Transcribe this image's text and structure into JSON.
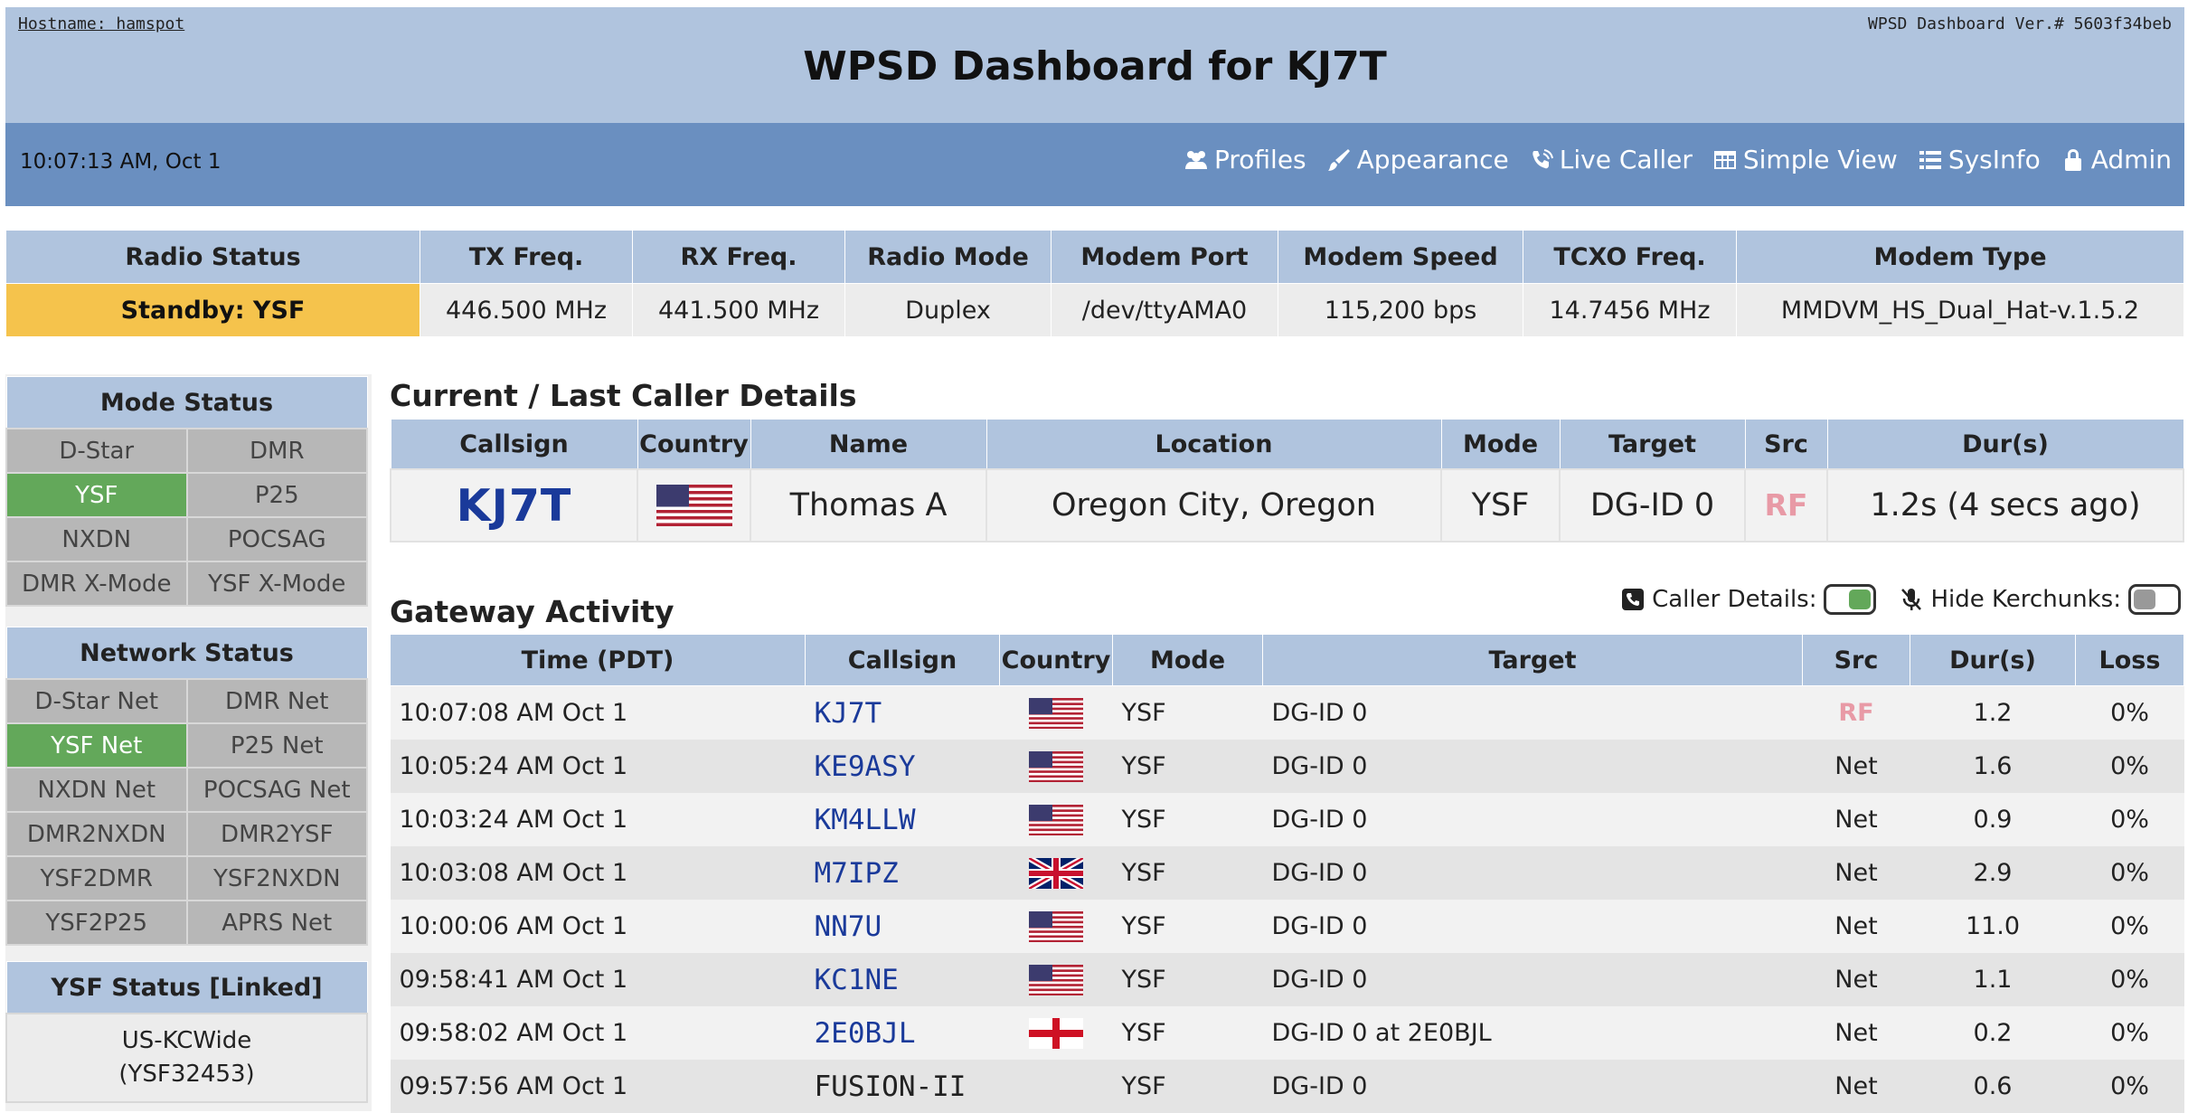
{
  "header": {
    "hostname": "Hostname: hamspot",
    "version": "WPSD Dashboard Ver.# 5603f34beb",
    "title": "WPSD Dashboard for KJ7T",
    "clock": "10:07:13 AM, Oct 1",
    "nav": [
      {
        "label": "Profiles",
        "icon": "users-icon"
      },
      {
        "label": "Appearance",
        "icon": "brush-icon"
      },
      {
        "label": "Live Caller",
        "icon": "phone-volume-icon"
      },
      {
        "label": "Simple View",
        "icon": "table-icon"
      },
      {
        "label": "SysInfo",
        "icon": "list-icon"
      },
      {
        "label": "Admin",
        "icon": "lock-icon"
      }
    ]
  },
  "radio": {
    "headers": [
      "Radio Status",
      "TX Freq.",
      "RX Freq.",
      "Radio Mode",
      "Modem Port",
      "Modem Speed",
      "TCXO Freq.",
      "Modem Type"
    ],
    "values": [
      "Standby: YSF",
      "446.500 MHz",
      "441.500 MHz",
      "Duplex",
      "/dev/ttyAMA0",
      "115,200 bps",
      "14.7456 MHz",
      "MMDVM_HS_Dual_Hat-v.1.5.2"
    ],
    "standby_color": "#f5c34c"
  },
  "mode_status": {
    "title": "Mode Status",
    "items": [
      "D-Star",
      "DMR",
      "YSF",
      "P25",
      "NXDN",
      "POCSAG",
      "DMR X-Mode",
      "YSF X-Mode"
    ],
    "active": "YSF"
  },
  "network_status": {
    "title": "Network Status",
    "items": [
      "D-Star Net",
      "DMR Net",
      "YSF Net",
      "P25 Net",
      "NXDN Net",
      "POCSAG Net",
      "DMR2NXDN",
      "DMR2YSF",
      "YSF2DMR",
      "YSF2NXDN",
      "YSF2P25",
      "APRS Net"
    ],
    "active": "YSF Net"
  },
  "ysf_status": {
    "title": "YSF Status [Linked]",
    "line1": "US-KCWide",
    "line2": "(YSF32453)"
  },
  "caller": {
    "section_title": "Current / Last Caller Details",
    "headers": [
      "Callsign",
      "Country",
      "Name",
      "Location",
      "Mode",
      "Target",
      "Src",
      "Dur(s)"
    ],
    "callsign": "KJ7T",
    "country_flag": "us-flag-icon",
    "name": "Thomas A",
    "location": "Oregon City, Oregon",
    "mode": "YSF",
    "target": "DG-ID 0",
    "src": "RF",
    "duration": "1.2s (4 secs ago)"
  },
  "gateway": {
    "section_title": "Gateway Activity",
    "caller_details_label": "Caller Details:",
    "caller_details_on": true,
    "hide_kerchunks_label": "Hide Kerchunks:",
    "hide_kerchunks_on": false,
    "headers": [
      "Time (PDT)",
      "Callsign",
      "Country",
      "Mode",
      "Target",
      "Src",
      "Dur(s)",
      "Loss"
    ],
    "rows": [
      {
        "time": "10:07:08 AM Oct 1",
        "callsign": "KJ7T",
        "flag": "us",
        "mode": "YSF",
        "target": "DG-ID 0",
        "src": "RF",
        "dur": "1.2",
        "loss": "0%"
      },
      {
        "time": "10:05:24 AM Oct 1",
        "callsign": "KE9ASY",
        "flag": "us",
        "mode": "YSF",
        "target": "DG-ID 0",
        "src": "Net",
        "dur": "1.6",
        "loss": "0%"
      },
      {
        "time": "10:03:24 AM Oct 1",
        "callsign": "KM4LLW",
        "flag": "us",
        "mode": "YSF",
        "target": "DG-ID 0",
        "src": "Net",
        "dur": "0.9",
        "loss": "0%"
      },
      {
        "time": "10:03:08 AM Oct 1",
        "callsign": "M7IPZ",
        "flag": "uk",
        "mode": "YSF",
        "target": "DG-ID 0",
        "src": "Net",
        "dur": "2.9",
        "loss": "0%"
      },
      {
        "time": "10:00:06 AM Oct 1",
        "callsign": "NN7U",
        "flag": "us",
        "mode": "YSF",
        "target": "DG-ID 0",
        "src": "Net",
        "dur": "11.0",
        "loss": "0%"
      },
      {
        "time": "09:58:41 AM Oct 1",
        "callsign": "KC1NE",
        "flag": "us",
        "mode": "YSF",
        "target": "DG-ID 0",
        "src": "Net",
        "dur": "1.1",
        "loss": "0%"
      },
      {
        "time": "09:58:02 AM Oct 1",
        "callsign": "2E0BJL",
        "flag": "england",
        "mode": "YSF",
        "target": "DG-ID 0 at 2E0BJL",
        "src": "Net",
        "dur": "0.2",
        "loss": "0%"
      },
      {
        "time": "09:57:56 AM Oct 1",
        "callsign": "FUSION-II",
        "flag": "",
        "mode": "YSF",
        "target": "DG-ID 0",
        "src": "Net",
        "dur": "0.6",
        "loss": "0%"
      }
    ]
  },
  "colors": {
    "header_bg": "#b0c4de",
    "nav_bg": "#6a8fc0",
    "active_green": "#63a85a",
    "callsign_blue": "#1a3a9a",
    "rf_pink": "#e89aa6"
  }
}
